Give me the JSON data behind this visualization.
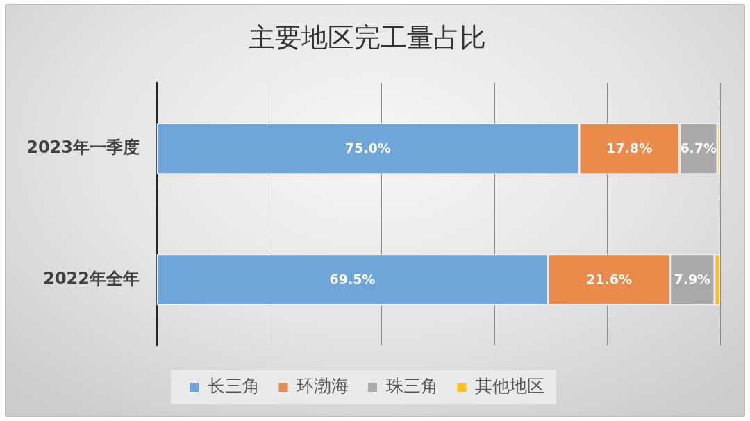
{
  "chart_data": {
    "type": "bar",
    "orientation": "horizontal",
    "stacked": true,
    "title": "主要地区完工量占比",
    "categories": [
      "2023年一季度",
      "2022年全年"
    ],
    "series": [
      {
        "name": "长三角",
        "color": "#6fa5d9",
        "values": [
          75.0,
          69.5
        ],
        "value_labels": [
          "75.0%",
          "69.5%"
        ]
      },
      {
        "name": "环渤海",
        "color": "#eb8b4b",
        "values": [
          17.8,
          21.6
        ],
        "value_labels": [
          "17.8%",
          "21.6%"
        ]
      },
      {
        "name": "珠三角",
        "color": "#a9a9a9",
        "values": [
          6.7,
          7.9
        ],
        "value_labels": [
          "6.7%",
          "7.9%"
        ]
      },
      {
        "name": "其他地区",
        "color": "#fdc21f",
        "values": [
          0.5,
          1.0
        ],
        "value_labels": [
          null,
          null
        ]
      }
    ],
    "xlim": [
      0,
      100
    ],
    "xticks": [
      {
        "value": 0,
        "label": null
      },
      {
        "value": 20,
        "label": null
      },
      {
        "value": 40,
        "label": null
      },
      {
        "value": 60,
        "label": null
      },
      {
        "value": 80,
        "label": null
      },
      {
        "value": 100,
        "label": null
      }
    ],
    "tick_labels": "y",
    "grid": "x",
    "legend": "bottom"
  }
}
